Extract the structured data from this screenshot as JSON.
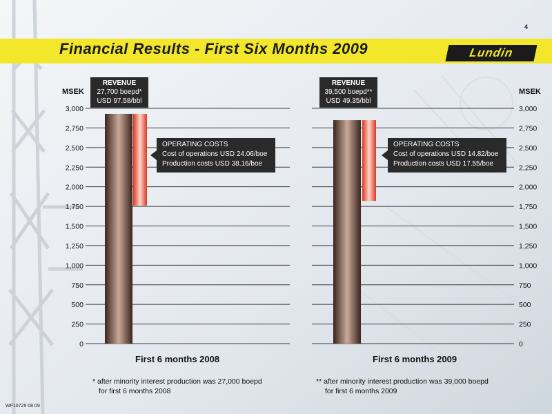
{
  "page_number": "4",
  "title": "Financial Results - First Six Months 2009",
  "logo_text": "Lundin",
  "reference": "WF10729 08.09",
  "colors": {
    "band": "#f2e72a",
    "revenue_bar": "#6b4a3e",
    "cost_bar": "#e8533f",
    "callout": "#2a2a2a"
  },
  "chart_data": [
    {
      "type": "bar",
      "category": "First 6 months 2008",
      "ylabel": "MSEK",
      "ylim": [
        0,
        3000
      ],
      "yticks": [
        "0",
        "250",
        "500",
        "750",
        "1,000",
        "1,250",
        "1,500",
        "1,750",
        "2,000",
        "2,250",
        "2,500",
        "2,750",
        "3,000"
      ],
      "revenue": 2930,
      "operating_costs_floor": 1760,
      "revenue_callout": {
        "title": "REVENUE",
        "line1": "27,700 boepd*",
        "line2": "USD 97.58/bbl"
      },
      "cost_callout": {
        "title": "OPERATING COSTS",
        "line1": "Cost of operations USD 24.06/boe",
        "line2": "Production costs USD 38.16/boe"
      },
      "footnote": [
        "* after minority interest production was 27,000 boepd",
        "for first 6 months 2008"
      ]
    },
    {
      "type": "bar",
      "category": "First 6 months 2009",
      "ylabel": "MSEK",
      "ylim": [
        0,
        3000
      ],
      "yticks": [
        "0",
        "250",
        "500",
        "750",
        "1,000",
        "1,250",
        "1,500",
        "1,750",
        "2,000",
        "2,250",
        "2,500",
        "2,750",
        "3,000"
      ],
      "revenue": 2850,
      "operating_costs_floor": 1820,
      "revenue_callout": {
        "title": "REVENUE",
        "line1": "39,500 boepd**",
        "line2": "USD 49.35/bbl"
      },
      "cost_callout": {
        "title": "OPERATING COSTS",
        "line1": "Cost of operations USD 14.82/boe",
        "line2": "Production costs USD 17.55/boe"
      },
      "footnote": [
        "** after minority interest production was 39,000 boepd",
        "for first 6 months 2009"
      ]
    }
  ]
}
